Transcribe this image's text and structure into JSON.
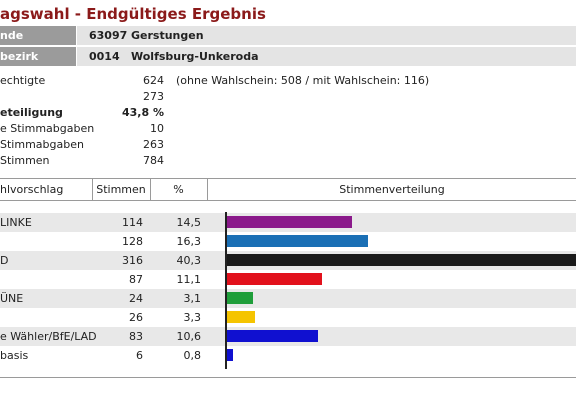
{
  "page": {
    "title": "agswahl - Endgültiges Ergebnis"
  },
  "location": [
    {
      "label": "nde",
      "code": "63097",
      "name": "Gerstungen"
    },
    {
      "label": "bezirk",
      "code": "0014",
      "name": "Wolfsburg-Unkeroda"
    }
  ],
  "stats": [
    {
      "label": "echtigte",
      "value": "624",
      "extra": "(ohne Wahlschein: 508 / mit Wahlschein: 116)",
      "bold": false
    },
    {
      "label": "",
      "value": "273",
      "extra": "",
      "bold": false
    },
    {
      "label": "eteiligung",
      "value": "43,8 %",
      "extra": "",
      "bold": true
    },
    {
      "label": "e Stimmabgaben",
      "value": "10",
      "extra": "",
      "bold": false
    },
    {
      "label": "Stimmabgaben",
      "value": "263",
      "extra": "",
      "bold": false
    },
    {
      "label": "Stimmen",
      "value": "784",
      "extra": "",
      "bold": false
    }
  ],
  "table": {
    "headers": {
      "party": "hlvorschlag",
      "votes": "Stimmen",
      "percent": "%",
      "distribution": "Stimmenverteilung"
    },
    "rows": [
      {
        "party": "LINKE",
        "votes": "114",
        "percent": "14,5",
        "color": "#8b1a8b",
        "share": 0.145
      },
      {
        "party": "",
        "votes": "128",
        "percent": "16,3",
        "color": "#1a6fb5",
        "share": 0.163
      },
      {
        "party": "D",
        "votes": "316",
        "percent": "40,3",
        "color": "#1a1a1a",
        "share": 0.403
      },
      {
        "party": "",
        "votes": "87",
        "percent": "11,1",
        "color": "#e2111c",
        "share": 0.111
      },
      {
        "party": "ÜNE",
        "votes": "24",
        "percent": "3,1",
        "color": "#1f9e3a",
        "share": 0.031
      },
      {
        "party": "",
        "votes": "26",
        "percent": "3,3",
        "color": "#f5c400",
        "share": 0.033
      },
      {
        "party": "e Wähler/BfE/LAD",
        "votes": "83",
        "percent": "10,6",
        "color": "#1010d0",
        "share": 0.106
      },
      {
        "party": "basis",
        "votes": "6",
        "percent": "0,8",
        "color": "#1010d0",
        "share": 0.008
      }
    ]
  }
}
